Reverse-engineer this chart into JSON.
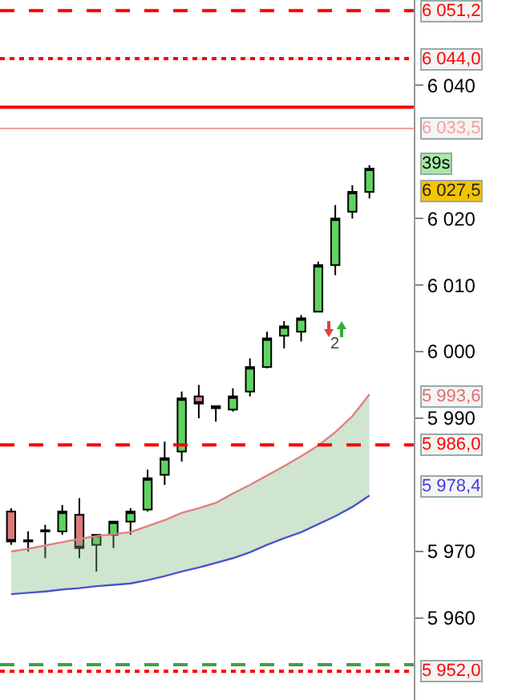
{
  "chart_data": {
    "type": "candlestick",
    "categories": [
      null,
      null,
      null,
      null,
      null,
      null,
      null,
      null,
      null,
      null,
      null,
      null,
      null,
      null,
      null,
      null,
      null,
      null,
      null,
      null,
      null,
      null
    ],
    "ohlc": [
      [
        5976,
        5976.5,
        5971,
        5971.5
      ],
      [
        5971.5,
        5973,
        5970,
        5971.7
      ],
      [
        5973,
        5974,
        5969,
        5973.2
      ],
      [
        5973,
        5977,
        5972.5,
        5976
      ],
      [
        5975.5,
        5978,
        5969,
        5970.5
      ],
      [
        5971,
        5972.5,
        5967,
        5972.5
      ],
      [
        5972.5,
        5974.5,
        5970.5,
        5974.5
      ],
      [
        5974.5,
        5976.5,
        5972.5,
        5976
      ],
      [
        5976.3,
        5982.3,
        5976,
        5981
      ],
      [
        5981.5,
        5986.5,
        5980,
        5984
      ],
      [
        5985,
        5994,
        5983.5,
        5993
      ],
      [
        5993.3,
        5995,
        5990,
        5992.2
      ],
      [
        5991.5,
        5991.8,
        5989.5,
        5991.8
      ],
      [
        5991.3,
        5994.5,
        5991,
        5993.3
      ],
      [
        5994,
        5999,
        5993.3,
        5997.7
      ],
      [
        5997.7,
        6003,
        5997.5,
        6002
      ],
      [
        6002.4,
        6004.6,
        6000.5,
        6003.8
      ],
      [
        6003,
        6005.5,
        6001.5,
        6005
      ],
      [
        6006,
        6013.5,
        6006,
        6013
      ],
      [
        6013,
        6022,
        6011.5,
        6020
      ],
      [
        6021,
        6025,
        6020,
        6024
      ],
      [
        6024,
        6028,
        6023,
        6027.5
      ]
    ],
    "colors": [
      "#e07a7a",
      "#000000",
      "#000000",
      "#5fd35f",
      "#e07a7a",
      "#5fd35f",
      "#5fd35f",
      "#5fd35f",
      "#5fd35f",
      "#5fd35f",
      "#5fd35f",
      "#e07a7a",
      "#000000",
      "#5fd35f",
      "#5fd35f",
      "#5fd35f",
      "#5fd35f",
      "#5fd35f",
      "#5fd35f",
      "#5fd35f",
      "#5fd35f",
      "#5fd35f"
    ],
    "series": [
      {
        "type": "line",
        "color": "#4040e0",
        "values": [
          5963.6,
          5963.8,
          5964.0,
          5964.3,
          5964.5,
          5964.8,
          5965.0,
          5965.2,
          5965.7,
          5966.3,
          5967.0,
          5967.6,
          5968.3,
          5969.0,
          5969.9,
          5971.0,
          5972.0,
          5972.9,
          5974.1,
          5975.3,
          5976.7,
          5978.4
        ]
      },
      {
        "type": "line",
        "color": "#e08080",
        "values": [
          5970.0,
          5970.4,
          5970.9,
          5971.4,
          5971.9,
          5972.3,
          5972.6,
          5972.9,
          5973.8,
          5974.7,
          5975.8,
          5976.5,
          5977.3,
          5978.7,
          5980.0,
          5981.4,
          5982.8,
          5984.3,
          5985.9,
          5987.9,
          5990.3,
          5993.6
        ],
        "lower": [
          5963.6,
          5963.8,
          5964.0,
          5964.3,
          5964.5,
          5964.8,
          5965.0,
          5965.2,
          5965.7,
          5966.3,
          5967.0,
          5967.6,
          5968.3,
          5969.0,
          5969.9,
          5971.0,
          5972.0,
          5972.9,
          5974.1,
          5975.3,
          5976.7,
          5978.4
        ],
        "upper": [
          5970.0,
          5970.4,
          5970.9,
          5971.4,
          5971.9,
          5972.3,
          5972.6,
          5972.9,
          5973.8,
          5974.7,
          5975.8,
          5976.5,
          5977.3,
          5978.7,
          5980.0,
          5981.4,
          5982.8,
          5984.3,
          5985.9,
          5987.9,
          5990.3,
          5993.6
        ]
      }
    ],
    "ylim": [
      5947.7,
      6052.8
    ],
    "yticks": [
      {
        "value": 5960,
        "label": "5 960"
      },
      {
        "value": 5970,
        "label": "5 970"
      },
      {
        "value": 5990,
        "label": "5 990"
      },
      {
        "value": 6000,
        "label": "6 000"
      },
      {
        "value": 6010,
        "label": "6 010"
      },
      {
        "value": 6020,
        "label": "6 020"
      },
      {
        "value": 6040,
        "label": "6 040"
      }
    ],
    "ref_lines": [
      {
        "axis": "y",
        "value": 6051.2,
        "label": "6 051,2",
        "color": "#ff0000",
        "line_style": "dashed"
      },
      {
        "axis": "y",
        "value": 6044.0,
        "label": "6 044,0",
        "color": "#ff0000",
        "line_style": "dotted"
      },
      {
        "axis": "y",
        "value": 6036.7,
        "color": "#ff0000",
        "line_style": "solid"
      },
      {
        "axis": "y",
        "value": 6033.5,
        "label": "6 033,5",
        "color": "#f4a0a0",
        "line_style": "solid"
      },
      {
        "axis": "y",
        "value": 5986.0,
        "label": "5 986,0",
        "color": "#ff0000",
        "line_style": "dashed"
      },
      {
        "axis": "y",
        "value": 5953.0,
        "color": "#40a040",
        "line_style": "dashed"
      },
      {
        "axis": "y",
        "value": 5952.0,
        "label": "5 952,0",
        "color": "#ff0000",
        "line_style": "dotted"
      }
    ],
    "annotations": [
      "6 027,5",
      "5 993,6",
      "5 978,4",
      "39s",
      "2"
    ],
    "grid": false,
    "marker": "none",
    "tick_labels": "y"
  }
}
